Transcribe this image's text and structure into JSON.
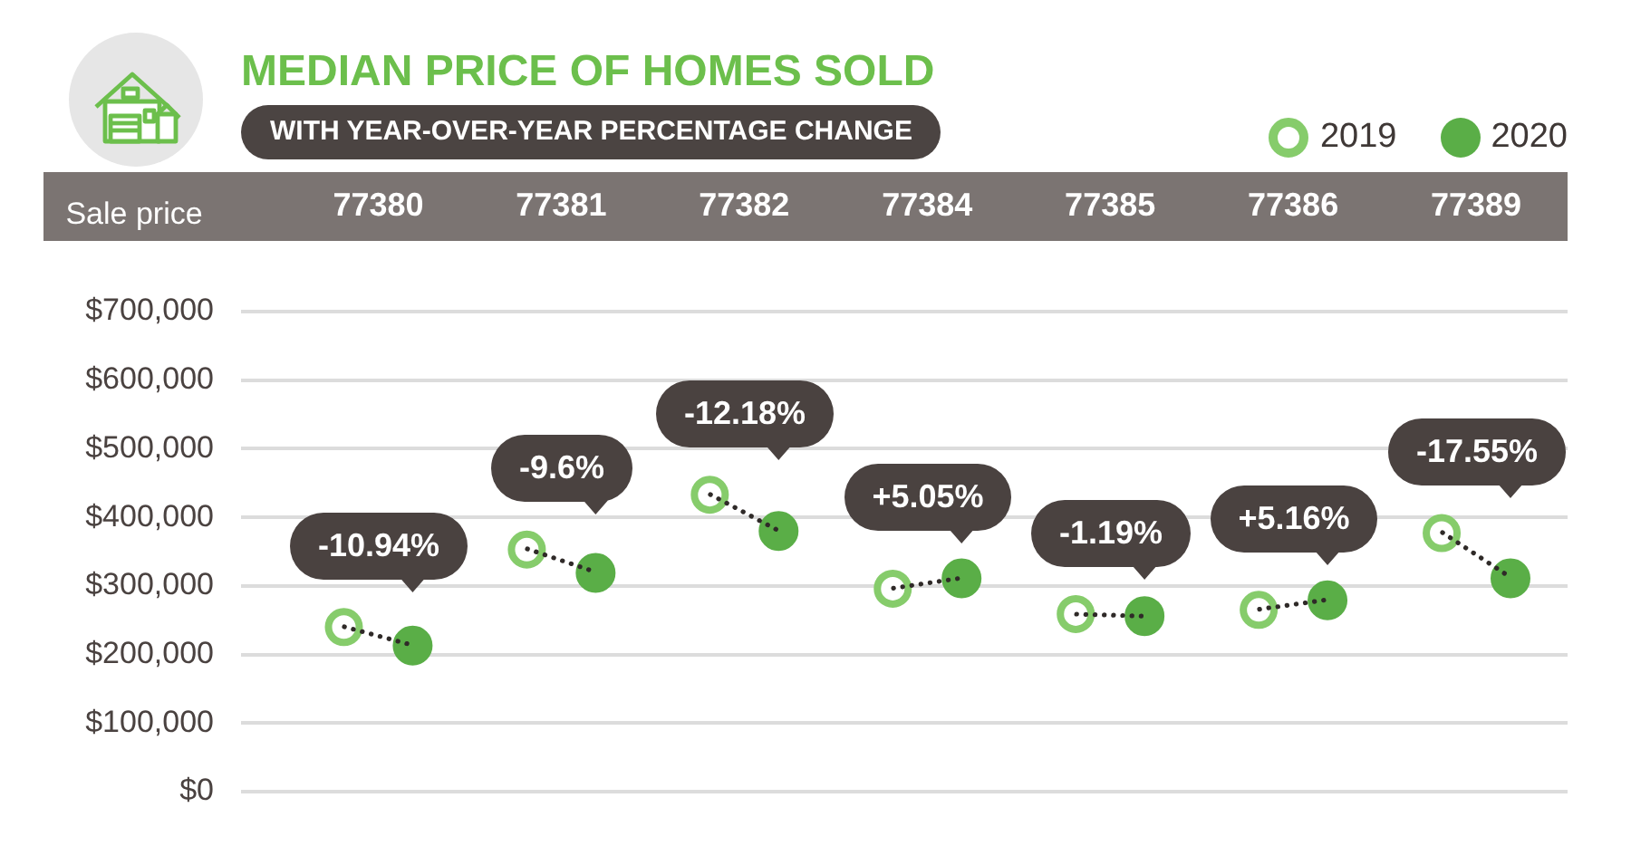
{
  "chart_data": {
    "type": "scatter",
    "title": "MEDIAN PRICE OF HOMES SOLD",
    "subtitle": "WITH YEAR-OVER-YEAR PERCENTAGE CHANGE",
    "ylabel": "Sale price",
    "categories": [
      "77380",
      "77381",
      "77382",
      "77384",
      "77385",
      "77386",
      "77389"
    ],
    "series": [
      {
        "name": "2019",
        "color": "#86cc6b",
        "values": [
          240000,
          353000,
          433000,
          296000,
          259000,
          265000,
          377000
        ]
      },
      {
        "name": "2020",
        "color": "#5aae47",
        "values": [
          213000,
          319000,
          380000,
          311000,
          256000,
          279000,
          311000
        ]
      }
    ],
    "ylim": [
      0,
      700000
    ],
    "yticks": [
      {
        "value": 0,
        "label": "$0"
      },
      {
        "value": 100000,
        "label": "$100,000"
      },
      {
        "value": 200000,
        "label": "$200,000"
      },
      {
        "value": 300000,
        "label": "$300,000"
      },
      {
        "value": 400000,
        "label": "$400,000"
      },
      {
        "value": 500000,
        "label": "$500,000"
      },
      {
        "value": 600000,
        "label": "$600,000"
      },
      {
        "value": 700000,
        "label": "$700,000"
      }
    ],
    "grid": "y",
    "legend": "top right",
    "marker": "circle",
    "line_style": "dotted",
    "annotations": [
      "-10.94%",
      "-9.6%",
      "-12.18%",
      "+5.05%",
      "-1.19%",
      "+5.16%",
      "-17.55%"
    ]
  }
}
